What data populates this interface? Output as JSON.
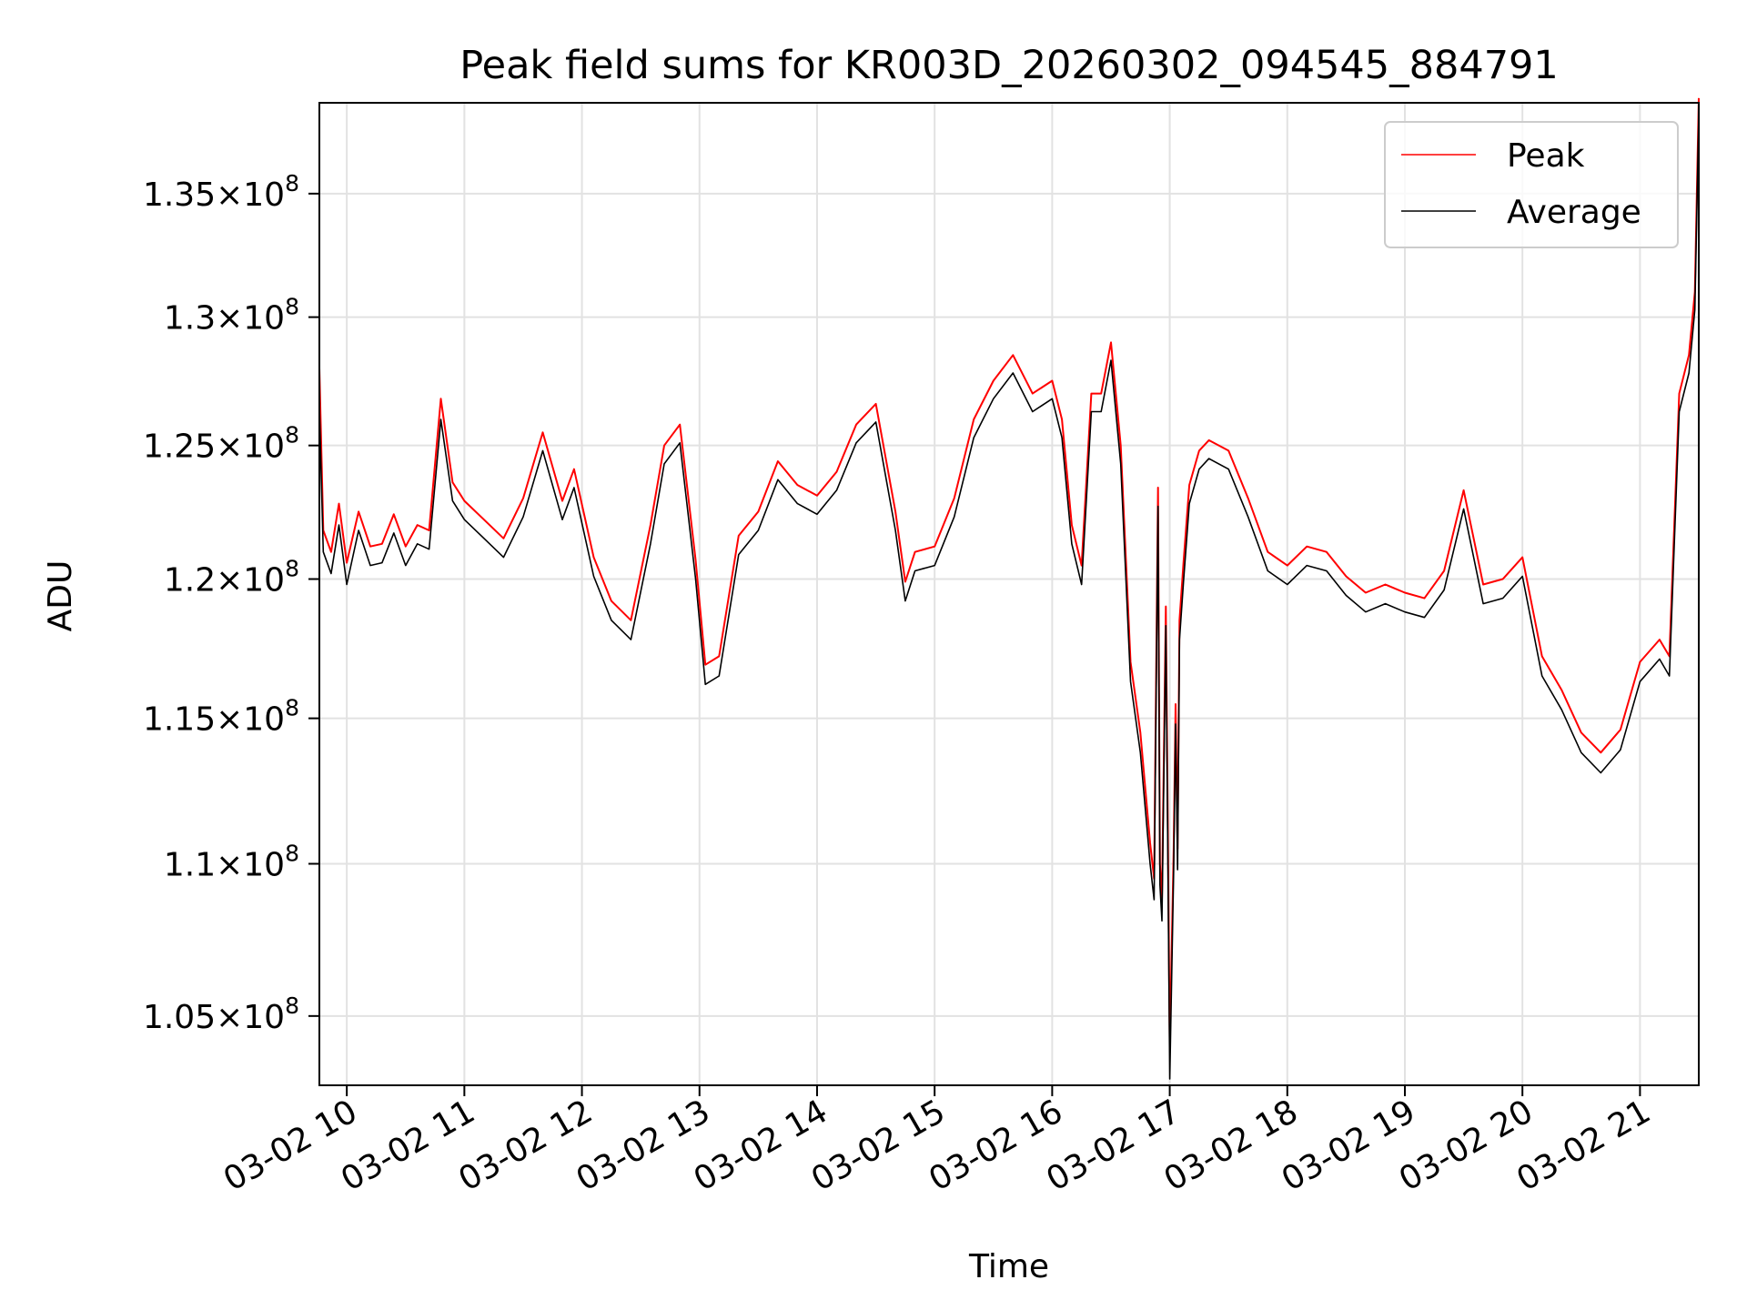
{
  "chart_data": {
    "type": "line",
    "title": "Peak field sums for KR003D_20260302_094545_884791",
    "xlabel": "Time",
    "ylabel": "ADU",
    "y_scale": "log",
    "grid": true,
    "legend_position": "upper-right",
    "x_range": [
      "2026-03-02 09:46",
      "2026-03-02 21:30"
    ],
    "ylim": [
      102800000,
      138800000
    ],
    "x_ticks": [
      {
        "value": "2026-03-02 10:00",
        "label": "03-02 10"
      },
      {
        "value": "2026-03-02 11:00",
        "label": "03-02 11"
      },
      {
        "value": "2026-03-02 12:00",
        "label": "03-02 12"
      },
      {
        "value": "2026-03-02 13:00",
        "label": "03-02 13"
      },
      {
        "value": "2026-03-02 14:00",
        "label": "03-02 14"
      },
      {
        "value": "2026-03-02 15:00",
        "label": "03-02 15"
      },
      {
        "value": "2026-03-02 16:00",
        "label": "03-02 16"
      },
      {
        "value": "2026-03-02 17:00",
        "label": "03-02 17"
      },
      {
        "value": "2026-03-02 18:00",
        "label": "03-02 18"
      },
      {
        "value": "2026-03-02 19:00",
        "label": "03-02 19"
      },
      {
        "value": "2026-03-02 20:00",
        "label": "03-02 20"
      },
      {
        "value": "2026-03-02 21:00",
        "label": "03-02 21"
      }
    ],
    "y_ticks": [
      {
        "value": 105000000,
        "mantissa": "1.05",
        "exp": "8"
      },
      {
        "value": 110000000,
        "mantissa": "1.1",
        "exp": "8"
      },
      {
        "value": 115000000,
        "mantissa": "1.15",
        "exp": "8"
      },
      {
        "value": 120000000,
        "mantissa": "1.2",
        "exp": "8"
      },
      {
        "value": 125000000,
        "mantissa": "1.25",
        "exp": "8"
      },
      {
        "value": 130000000,
        "mantissa": "1.3",
        "exp": "8"
      },
      {
        "value": 135000000,
        "mantissa": "1.35",
        "exp": "8"
      }
    ],
    "x": [
      "2026-03-02 09:46",
      "2026-03-02 09:48",
      "2026-03-02 09:52",
      "2026-03-02 09:56",
      "2026-03-02 10:00",
      "2026-03-02 10:06",
      "2026-03-02 10:12",
      "2026-03-02 10:18",
      "2026-03-02 10:24",
      "2026-03-02 10:30",
      "2026-03-02 10:36",
      "2026-03-02 10:42",
      "2026-03-02 10:48",
      "2026-03-02 10:54",
      "2026-03-02 11:00",
      "2026-03-02 11:10",
      "2026-03-02 11:20",
      "2026-03-02 11:30",
      "2026-03-02 11:40",
      "2026-03-02 11:50",
      "2026-03-02 11:56",
      "2026-03-02 12:06",
      "2026-03-02 12:15",
      "2026-03-02 12:25",
      "2026-03-02 12:35",
      "2026-03-02 12:42",
      "2026-03-02 12:50",
      "2026-03-02 12:58",
      "2026-03-02 13:03",
      "2026-03-02 13:10",
      "2026-03-02 13:20",
      "2026-03-02 13:30",
      "2026-03-02 13:40",
      "2026-03-02 13:50",
      "2026-03-02 14:00",
      "2026-03-02 14:10",
      "2026-03-02 14:20",
      "2026-03-02 14:30",
      "2026-03-02 14:40",
      "2026-03-02 14:45",
      "2026-03-02 14:50",
      "2026-03-02 15:00",
      "2026-03-02 15:10",
      "2026-03-02 15:20",
      "2026-03-02 15:30",
      "2026-03-02 15:40",
      "2026-03-02 15:50",
      "2026-03-02 16:00",
      "2026-03-02 16:05",
      "2026-03-02 16:10",
      "2026-03-02 16:15",
      "2026-03-02 16:20",
      "2026-03-02 16:25",
      "2026-03-02 16:30",
      "2026-03-02 16:35",
      "2026-03-02 16:40",
      "2026-03-02 16:45",
      "2026-03-02 16:50",
      "2026-03-02 16:52",
      "2026-03-02 16:54",
      "2026-03-02 16:55",
      "2026-03-02 16:56",
      "2026-03-02 16:58",
      "2026-03-02 17:00",
      "2026-03-02 17:02",
      "2026-03-02 17:03",
      "2026-03-02 17:04",
      "2026-03-02 17:05",
      "2026-03-02 17:07",
      "2026-03-02 17:10",
      "2026-03-02 17:15",
      "2026-03-02 17:20",
      "2026-03-02 17:30",
      "2026-03-02 17:40",
      "2026-03-02 17:50",
      "2026-03-02 18:00",
      "2026-03-02 18:10",
      "2026-03-02 18:20",
      "2026-03-02 18:30",
      "2026-03-02 18:40",
      "2026-03-02 18:50",
      "2026-03-02 19:00",
      "2026-03-02 19:10",
      "2026-03-02 19:20",
      "2026-03-02 19:30",
      "2026-03-02 19:40",
      "2026-03-02 19:50",
      "2026-03-02 20:00",
      "2026-03-02 20:10",
      "2026-03-02 20:20",
      "2026-03-02 20:30",
      "2026-03-02 20:40",
      "2026-03-02 20:50",
      "2026-03-02 21:00",
      "2026-03-02 21:10",
      "2026-03-02 21:15",
      "2026-03-02 21:20",
      "2026-03-02 21:25",
      "2026-03-02 21:28",
      "2026-03-02 21:30"
    ],
    "series": [
      {
        "name": "Peak",
        "color": "#ff0000",
        "values": [
          128000000,
          121800000,
          121000000,
          122800000,
          120600000,
          122500000,
          121200000,
          121300000,
          122400000,
          121200000,
          122000000,
          121800000,
          126800000,
          123600000,
          122900000,
          122200000,
          121500000,
          123000000,
          125500000,
          122900000,
          124100000,
          120800000,
          119200000,
          118500000,
          122000000,
          125000000,
          125800000,
          120700000,
          116900000,
          117200000,
          121600000,
          122500000,
          124400000,
          123500000,
          123100000,
          124000000,
          125800000,
          126600000,
          122500000,
          119900000,
          121000000,
          121200000,
          123000000,
          126000000,
          127500000,
          128500000,
          127000000,
          127500000,
          126000000,
          122000000,
          120500000,
          127000000,
          127000000,
          129000000,
          125000000,
          117000000,
          114500000,
          110700000,
          109500000,
          123400000,
          110000000,
          108800000,
          119000000,
          104000000,
          110500000,
          115500000,
          110500000,
          118500000,
          120600000,
          123500000,
          124800000,
          125200000,
          124800000,
          123000000,
          121000000,
          120500000,
          121200000,
          121000000,
          120100000,
          119500000,
          119800000,
          119500000,
          119300000,
          120300000,
          123300000,
          119800000,
          120000000,
          120800000,
          117200000,
          116000000,
          114500000,
          113800000,
          114600000,
          117000000,
          117800000,
          117200000,
          127000000,
          128500000,
          131000000,
          139000000
        ]
      },
      {
        "name": "Average",
        "color": "#000000",
        "values": [
          126500000,
          121000000,
          120200000,
          122000000,
          119800000,
          121800000,
          120500000,
          120600000,
          121700000,
          120500000,
          121300000,
          121100000,
          126000000,
          122900000,
          122200000,
          121500000,
          120800000,
          122300000,
          124800000,
          122200000,
          123400000,
          120100000,
          118500000,
          117800000,
          121300000,
          124300000,
          125100000,
          120000000,
          116200000,
          116500000,
          120900000,
          121800000,
          123700000,
          122800000,
          122400000,
          123300000,
          125100000,
          125900000,
          121800000,
          119200000,
          120300000,
          120500000,
          122300000,
          125300000,
          126800000,
          127800000,
          126300000,
          126800000,
          125300000,
          121300000,
          119800000,
          126300000,
          126300000,
          128300000,
          124300000,
          116300000,
          113800000,
          110000000,
          108800000,
          122700000,
          109300000,
          108100000,
          118300000,
          103000000,
          109800000,
          114800000,
          109800000,
          117800000,
          119900000,
          122800000,
          124100000,
          124500000,
          124100000,
          122300000,
          120300000,
          119800000,
          120500000,
          120300000,
          119400000,
          118800000,
          119100000,
          118800000,
          118600000,
          119600000,
          122600000,
          119100000,
          119300000,
          120100000,
          116500000,
          115300000,
          113800000,
          113100000,
          113900000,
          116300000,
          117100000,
          116500000,
          126300000,
          127800000,
          130300000,
          138300000
        ]
      }
    ]
  }
}
